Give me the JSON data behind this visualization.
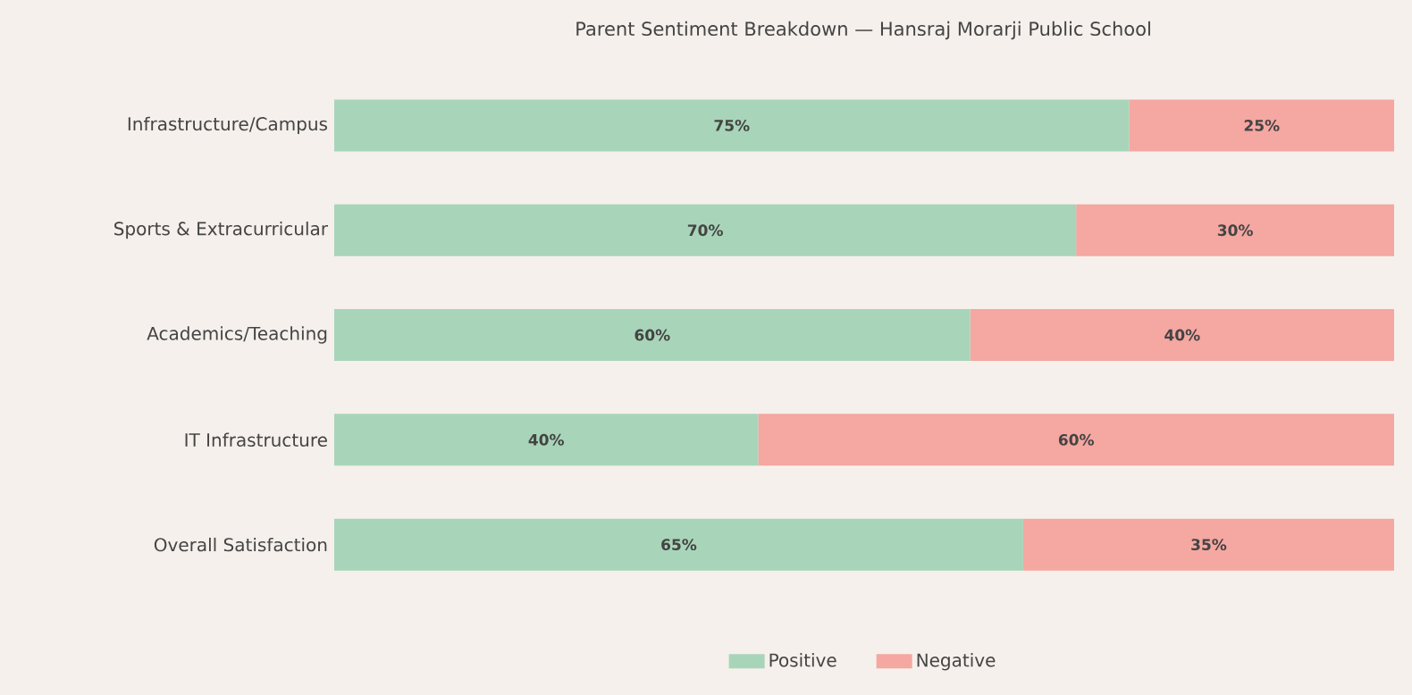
{
  "chart_data": {
    "type": "bar",
    "orientation": "horizontal",
    "stacked": true,
    "title": "Parent Sentiment Breakdown — Hansraj Morarji Public School",
    "categories": [
      "Infrastructure/Campus",
      "Sports & Extracurricular",
      "Academics/Teaching",
      "IT Infrastructure",
      "Overall Satisfaction"
    ],
    "series": [
      {
        "name": "Positive",
        "color": "#a8d5b9",
        "values": [
          75,
          70,
          60,
          40,
          65
        ],
        "value_labels": [
          "75%",
          "70%",
          "60%",
          "40%",
          "65%"
        ]
      },
      {
        "name": "Negative",
        "color": "#f5a7a1",
        "values": [
          25,
          30,
          40,
          60,
          35
        ],
        "value_labels": [
          "25%",
          "30%",
          "40%",
          "60%",
          "35%"
        ]
      }
    ],
    "xlim": [
      0,
      100
    ],
    "tick_labels": "y",
    "grid": false,
    "legend": "bottom"
  }
}
